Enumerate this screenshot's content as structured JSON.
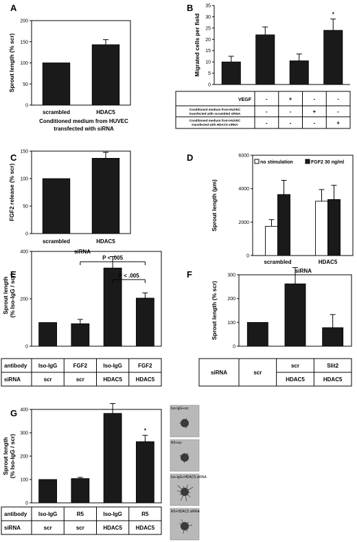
{
  "chart_data": [
    {
      "panel": "A",
      "type": "bar",
      "categories": [
        "scrambled",
        "HDAC5"
      ],
      "values": [
        100,
        143
      ],
      "errors": [
        0,
        12
      ],
      "ylabel": "Sprout length (% scr)",
      "xlabel": "Conditioned medium from HUVEC transfected with siRNA",
      "ylim": [
        0,
        200
      ],
      "yticks": [
        "0",
        "50",
        "100",
        "150",
        "200"
      ]
    },
    {
      "panel": "B",
      "type": "bar",
      "categories": [
        "1",
        "2",
        "3",
        "4"
      ],
      "values": [
        10,
        22,
        10.5,
        24
      ],
      "errors": [
        2.5,
        3.5,
        3,
        5
      ],
      "ylabel": "Migrated cells per field",
      "ylim": [
        0,
        35
      ],
      "yticks": [
        "0",
        "5",
        "10",
        "15",
        "20",
        "25",
        "30",
        "35"
      ],
      "annotations": [
        "*"
      ],
      "table": [
        {
          "label": "VEGF",
          "cells": [
            "-",
            "+",
            "-",
            "-"
          ]
        },
        {
          "label": "Conditioned medium from HUVEC transfected with scrambled siRNA",
          "cells": [
            "-",
            "-",
            "+",
            "-"
          ]
        },
        {
          "label": "Conditioned medium from HUVEC transfected with HDAC5 siRNA",
          "cells": [
            "-",
            "-",
            "-",
            "+"
          ]
        }
      ]
    },
    {
      "panel": "C",
      "type": "bar",
      "categories": [
        "scrambled",
        "HDAC5"
      ],
      "values": [
        100,
        137
      ],
      "errors": [
        0,
        11
      ],
      "ylabel": "FGF2 release (% scr)",
      "xlabel": "siRNA",
      "ylim": [
        0,
        150
      ],
      "yticks": [
        "0",
        "50",
        "100",
        "150"
      ]
    },
    {
      "panel": "D",
      "type": "bar",
      "categories": [
        "scrambled",
        "HDAC5"
      ],
      "series": [
        {
          "name": "no stimulation",
          "values": [
            1750,
            3250
          ],
          "errors": [
            400,
            700
          ]
        },
        {
          "name": "FGF2 30 ng/ml",
          "values": [
            3650,
            3350
          ],
          "errors": [
            850,
            850
          ]
        }
      ],
      "ylabel": "Sprout length (µm)",
      "xlabel": "siRNA",
      "ylim": [
        0,
        6000
      ],
      "yticks": [
        "0",
        "2000",
        "4000",
        "6000"
      ],
      "legend": "top"
    },
    {
      "panel": "E",
      "type": "bar",
      "categories": [
        "1",
        "2",
        "3",
        "4"
      ],
      "values": [
        100,
        95,
        330,
        203
      ],
      "errors": [
        0,
        18,
        48,
        22
      ],
      "ylabel_lines": [
        "Sprout length",
        "(% Iso-IgG / scr)"
      ],
      "ylim": [
        0,
        400
      ],
      "yticks": [
        "0",
        "200",
        "400"
      ],
      "annotations": [
        "P < .005",
        "P < .005"
      ],
      "table": [
        {
          "label": "antibody",
          "cells": [
            "Iso-IgG",
            "FGF2",
            "Iso-IgG",
            "FGF2"
          ]
        },
        {
          "label": "siRNA",
          "cells": [
            "scr",
            "scr",
            "HDAC5",
            "HDAC5"
          ]
        }
      ]
    },
    {
      "panel": "F",
      "type": "bar",
      "categories": [
        "1",
        "2",
        "3"
      ],
      "values": [
        100,
        262,
        78
      ],
      "errors": [
        0,
        68,
        55
      ],
      "ylabel": "Sprout length (% scr)",
      "ylim": [
        0,
        300
      ],
      "yticks": [
        "0",
        "100",
        "200",
        "300"
      ],
      "table": {
        "label": "siRNA",
        "row1": [
          "scr",
          "scr",
          "Slit2"
        ],
        "row2": [
          "HDAC5",
          "HDAC5"
        ]
      }
    },
    {
      "panel": "G",
      "type": "bar",
      "categories": [
        "1",
        "2",
        "3",
        "4"
      ],
      "values": [
        100,
        104,
        383,
        262
      ],
      "errors": [
        0,
        5,
        42,
        27
      ],
      "ylabel_lines": [
        "Sprout length",
        "(% Iso-IgG / scr)"
      ],
      "ylim": [
        0,
        400
      ],
      "yticks": [
        "0",
        "100",
        "200",
        "300",
        "400"
      ],
      "annotations": [
        "*"
      ],
      "table": [
        {
          "label": "antibody",
          "cells": [
            "Iso-IgG",
            "R5",
            "Iso-IgG",
            "R5"
          ]
        },
        {
          "label": "siRNA",
          "cells": [
            "scr",
            "scr",
            "HDAC5",
            "HDAC5"
          ]
        }
      ],
      "images": [
        "Iso-IgG+scr",
        "R5+scr",
        "Iso-IgG+HDAC5 siRNA",
        "R5+HDAC5 siRNA"
      ]
    }
  ]
}
